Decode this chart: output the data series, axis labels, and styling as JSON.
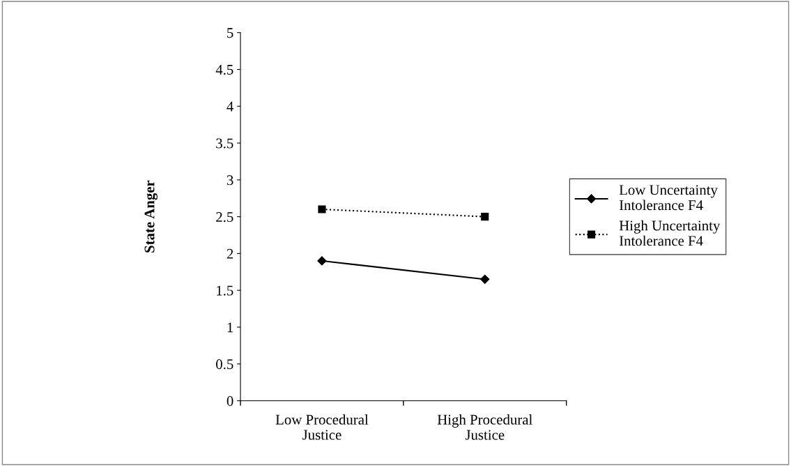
{
  "chart_data": {
    "type": "line",
    "ylabel": "State Anger",
    "categories": [
      "Low Procedural\nJustice",
      "High Procedural\nJustice"
    ],
    "series": [
      {
        "name": "Low Uncertainty\nIntolerance F4",
        "color": "#000000",
        "values": [
          1.9,
          1.65
        ],
        "marker": "diamond",
        "line_style": "solid"
      },
      {
        "name": "High Uncertainty\nIntolerance F4",
        "color": "#000000",
        "values": [
          2.6,
          2.5
        ],
        "marker": "square",
        "line_style": "dotted"
      }
    ],
    "ylim": [
      0,
      5
    ],
    "yticks": [
      0,
      0.5,
      1,
      1.5,
      2,
      2.5,
      3,
      3.5,
      4,
      4.5,
      5
    ],
    "grid": false,
    "legend": "right"
  }
}
